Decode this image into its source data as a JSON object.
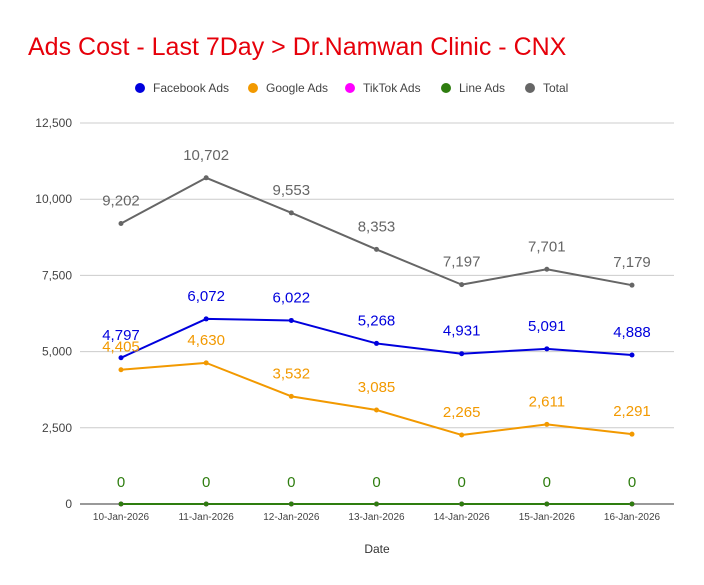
{
  "chart_data": {
    "type": "line",
    "title": "Ads Cost - Last 7Day > Dr.Namwan Clinic - CNX",
    "xlabel": "Date",
    "ylabel": "",
    "categories": [
      "10-Jan-2026",
      "11-Jan-2026",
      "12-Jan-2026",
      "13-Jan-2026",
      "14-Jan-2026",
      "15-Jan-2026",
      "16-Jan-2026"
    ],
    "ylim": [
      0,
      12500
    ],
    "yticks": [
      0,
      2500,
      5000,
      7500,
      10000,
      12500
    ],
    "ytick_labels": [
      "0",
      "2,500",
      "5,000",
      "7,500",
      "10,000",
      "12,500"
    ],
    "grid": true,
    "legend_position": "top",
    "series": [
      {
        "name": "Facebook Ads",
        "color": "#0000dd",
        "values": [
          4797,
          6072,
          6022,
          5268,
          4931,
          5091,
          4888
        ],
        "labels": [
          "4,797",
          "6,072",
          "6,022",
          "5,268",
          "4,931",
          "5,091",
          "4,888"
        ]
      },
      {
        "name": "Google Ads",
        "color": "#f29900",
        "values": [
          4405,
          4630,
          3532,
          3085,
          2265,
          2611,
          2291
        ],
        "labels": [
          "4,405",
          "4,630",
          "3,532",
          "3,085",
          "2,265",
          "2,611",
          "2,291"
        ]
      },
      {
        "name": "TikTok Ads",
        "color": "#ff00ff",
        "values": [
          0,
          0,
          0,
          0,
          0,
          0,
          0
        ],
        "labels": [
          "",
          "",
          "",
          "",
          "",
          "",
          ""
        ]
      },
      {
        "name": "Line Ads",
        "color": "#2e7d0f",
        "values": [
          0,
          0,
          0,
          0,
          0,
          0,
          0
        ],
        "labels": [
          "0",
          "0",
          "0",
          "0",
          "0",
          "0",
          "0"
        ]
      },
      {
        "name": "Total",
        "color": "#666666",
        "values": [
          9202,
          10702,
          9553,
          8353,
          7197,
          7701,
          7179
        ],
        "labels": [
          "9,202",
          "10,702",
          "9,553",
          "8,353",
          "7,197",
          "7,701",
          "7,179"
        ]
      }
    ]
  }
}
